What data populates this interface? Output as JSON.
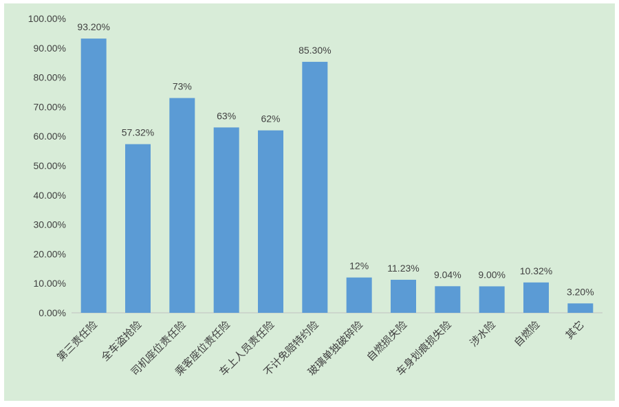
{
  "colors": {
    "background": "#d8ecd8",
    "bar": "#5b9bd5",
    "axis": "#bfbfbf",
    "text": "#404040"
  },
  "chart_data": {
    "type": "bar",
    "title": "",
    "xlabel": "",
    "ylabel": "",
    "ylim": [
      0,
      100
    ],
    "grid": false,
    "y_ticks": [
      "0.00%",
      "10.00%",
      "20.00%",
      "30.00%",
      "40.00%",
      "50.00%",
      "60.00%",
      "70.00%",
      "80.00%",
      "90.00%",
      "100.00%"
    ],
    "categories": [
      "第三责任险",
      "全车盗抢险",
      "司机座位责任险",
      "乘客座位责任险",
      "车上人员责任险",
      "不计免赔特约险",
      "玻璃单独破碎险",
      "自燃损失险",
      "车身划痕损失险",
      "涉水险",
      "自燃险",
      "其它"
    ],
    "values": [
      93.2,
      57.32,
      73,
      63,
      62,
      85.3,
      12,
      11.23,
      9.04,
      9.0,
      10.32,
      3.2
    ],
    "data_labels": [
      "93.20%",
      "57.32%",
      "73%",
      "63%",
      "62%",
      "85.30%",
      "12%",
      "11.23%",
      "9.04%",
      "9.00%",
      "10.32%",
      "3.20%"
    ]
  }
}
